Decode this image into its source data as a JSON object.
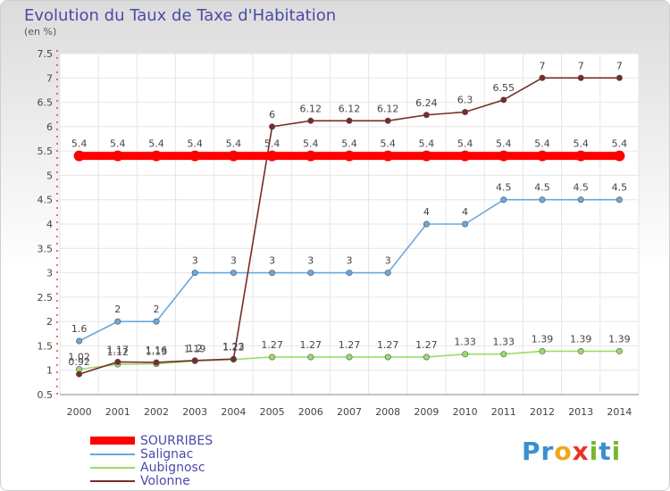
{
  "title": "Evolution du Taux de Taxe d'Habitation",
  "subtitle": "(en %)",
  "logo": {
    "text": "Proxiti",
    "letters": [
      {
        "ch": "P",
        "color": "#3a8fd0"
      },
      {
        "ch": "r",
        "color": "#3a8fd0"
      },
      {
        "ch": "o",
        "color": "#f2a71a"
      },
      {
        "ch": "x",
        "color": "#e8332a"
      },
      {
        "ch": "i",
        "color": "#76b82a"
      },
      {
        "ch": "t",
        "color": "#3a8fd0"
      },
      {
        "ch": "i",
        "color": "#76b82a"
      }
    ]
  },
  "chart_data": {
    "type": "line",
    "title": "Evolution du Taux de Taxe d'Habitation",
    "ylabel": "(en %)",
    "xlabel": "",
    "x": [
      "2000",
      "2001",
      "2002",
      "2003",
      "2004",
      "2005",
      "2006",
      "2007",
      "2008",
      "2009",
      "2010",
      "2011",
      "2012",
      "2013",
      "2014"
    ],
    "ylim": [
      0.5,
      7.5
    ],
    "yticks": [
      "0.5",
      "1",
      "1.5",
      "2",
      "2.5",
      "3",
      "3.5",
      "4",
      "4.5",
      "5",
      "5.5",
      "6",
      "6.5",
      "7",
      "7.5"
    ],
    "grid": true,
    "legend": "bottom-left",
    "series": [
      {
        "name": "SOURRIBES",
        "color": "#ff0000",
        "values": [
          5.4,
          5.4,
          5.4,
          5.4,
          5.4,
          5.4,
          5.4,
          5.4,
          5.4,
          5.4,
          5.4,
          5.4,
          5.4,
          5.4,
          5.4
        ],
        "labels": [
          "5.4",
          "5.4",
          "5.4",
          "5.4",
          "5.4",
          "5.4",
          "5.4",
          "5.4",
          "5.4",
          "5.4",
          "5.4",
          "5.4",
          "5.4",
          "5.4",
          "5.4"
        ]
      },
      {
        "name": "Salignac",
        "color": "#6aa8dc",
        "values": [
          1.6,
          2,
          2,
          3,
          3,
          3,
          3,
          3,
          3,
          4,
          4,
          4.5,
          4.5,
          4.5,
          4.5
        ],
        "labels": [
          "1.6",
          "2",
          "2",
          "3",
          "3",
          "3",
          "3",
          "3",
          "3",
          "4",
          "4",
          "4.5",
          "4.5",
          "4.5",
          "4.5"
        ]
      },
      {
        "name": "Aubignosc",
        "color": "#99dd66",
        "values": [
          1.02,
          1.12,
          1.13,
          1.19,
          1.22,
          1.27,
          1.27,
          1.27,
          1.27,
          1.27,
          1.33,
          1.33,
          1.39,
          1.39,
          1.39
        ],
        "labels": [
          "1.02",
          "1.12",
          "1.13",
          "1.19",
          "1.22",
          "1.27",
          "1.27",
          "1.27",
          "1.27",
          "1.27",
          "1.33",
          "1.33",
          "1.39",
          "1.39",
          "1.39"
        ]
      },
      {
        "name": "Volonne",
        "color": "#7a2a2a",
        "values": [
          0.92,
          1.17,
          1.16,
          1.2,
          1.23,
          6,
          6.12,
          6.12,
          6.12,
          6.24,
          6.3,
          6.55,
          7,
          7,
          7
        ],
        "labels": [
          "0.92",
          "1.17",
          "1.16",
          "1.2",
          "1.23",
          "6",
          "6.12",
          "6.12",
          "6.12",
          "6.24",
          "6.3",
          "6.55",
          "7",
          "7",
          "7"
        ]
      }
    ]
  }
}
